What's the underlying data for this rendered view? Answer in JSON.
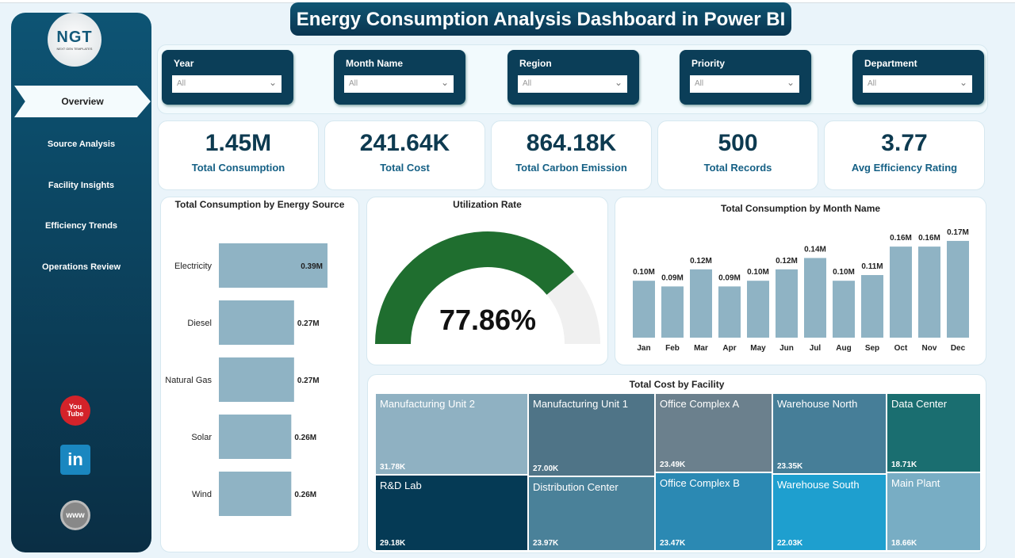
{
  "title": "Energy Consumption Analysis Dashboard in Power BI",
  "logo": {
    "text": "NGT",
    "subtext": "NEXT GEN TEMPLATES"
  },
  "nav": [
    {
      "label": "Overview",
      "active": true
    },
    {
      "label": "Source Analysis"
    },
    {
      "label": "Facility Insights"
    },
    {
      "label": "Efficiency Trends"
    },
    {
      "label": "Operations Review"
    }
  ],
  "social": [
    {
      "icon": "youtube-icon",
      "label": "You Tube"
    },
    {
      "icon": "linkedin-icon",
      "label": "in"
    },
    {
      "icon": "globe-icon",
      "label": "www"
    }
  ],
  "filters": [
    {
      "label": "Year",
      "value": "All"
    },
    {
      "label": "Month Name",
      "value": "All"
    },
    {
      "label": "Region",
      "value": "All"
    },
    {
      "label": "Priority",
      "value": "All"
    },
    {
      "label": "Department",
      "value": "All"
    }
  ],
  "kpis": [
    {
      "value": "1.45M",
      "label": "Total Consumption"
    },
    {
      "value": "241.64K",
      "label": "Total Cost"
    },
    {
      "value": "864.18K",
      "label": "Total Carbon Emission"
    },
    {
      "value": "500",
      "label": "Total Records"
    },
    {
      "value": "3.77",
      "label": "Avg Efficiency Rating"
    }
  ],
  "colors": {
    "sidebar": "#0d5474",
    "bar": "#8fb3c4",
    "gauge": "#1f6e2f",
    "gauge_bg": "#f0f0f0"
  },
  "chart_data": [
    {
      "type": "bar",
      "orientation": "horizontal",
      "title": "Total Consumption by Energy Source",
      "categories": [
        "Electricity",
        "Diesel",
        "Natural Gas",
        "Solar",
        "Wind"
      ],
      "values": [
        0.39,
        0.27,
        0.27,
        0.26,
        0.26
      ],
      "labels": [
        "0.39M",
        "0.27M",
        "0.27M",
        "0.26M",
        "0.26M"
      ]
    },
    {
      "type": "gauge",
      "title": "Utilization Rate",
      "value": 77.86,
      "label": "77.86%",
      "max": 100
    },
    {
      "type": "bar",
      "title": "Total Consumption by Month Name",
      "categories": [
        "Jan",
        "Feb",
        "Mar",
        "Apr",
        "May",
        "Jun",
        "Jul",
        "Aug",
        "Sep",
        "Oct",
        "Nov",
        "Dec"
      ],
      "values": [
        0.1,
        0.09,
        0.12,
        0.09,
        0.1,
        0.12,
        0.14,
        0.1,
        0.11,
        0.16,
        0.16,
        0.17
      ],
      "labels": [
        "0.10M",
        "0.09M",
        "0.12M",
        "0.09M",
        "0.10M",
        "0.12M",
        "0.14M",
        "0.10M",
        "0.11M",
        "0.16M",
        "0.16M",
        "0.17M"
      ]
    },
    {
      "type": "treemap",
      "title": "Total Cost by Facility",
      "items": [
        {
          "name": "Manufacturing Unit 2",
          "value": "31.78K",
          "color": "#8fb1c2"
        },
        {
          "name": "R&D Lab",
          "value": "29.18K",
          "color": "#053a55"
        },
        {
          "name": "Manufacturing Unit 1",
          "value": "27.00K",
          "color": "#4f7487"
        },
        {
          "name": "Distribution Center",
          "value": "23.97K",
          "color": "#4a8199"
        },
        {
          "name": "Office Complex A",
          "value": "23.49K",
          "color": "#6b808d"
        },
        {
          "name": "Office Complex B",
          "value": "23.47K",
          "color": "#2b89b3"
        },
        {
          "name": "Warehouse North",
          "value": "23.35K",
          "color": "#467e98"
        },
        {
          "name": "Warehouse South",
          "value": "22.03K",
          "color": "#1e9fcf"
        },
        {
          "name": "Data Center",
          "value": "18.71K",
          "color": "#1a6e70"
        },
        {
          "name": "Main Plant",
          "value": "18.66K",
          "color": "#78adc4"
        }
      ]
    }
  ]
}
